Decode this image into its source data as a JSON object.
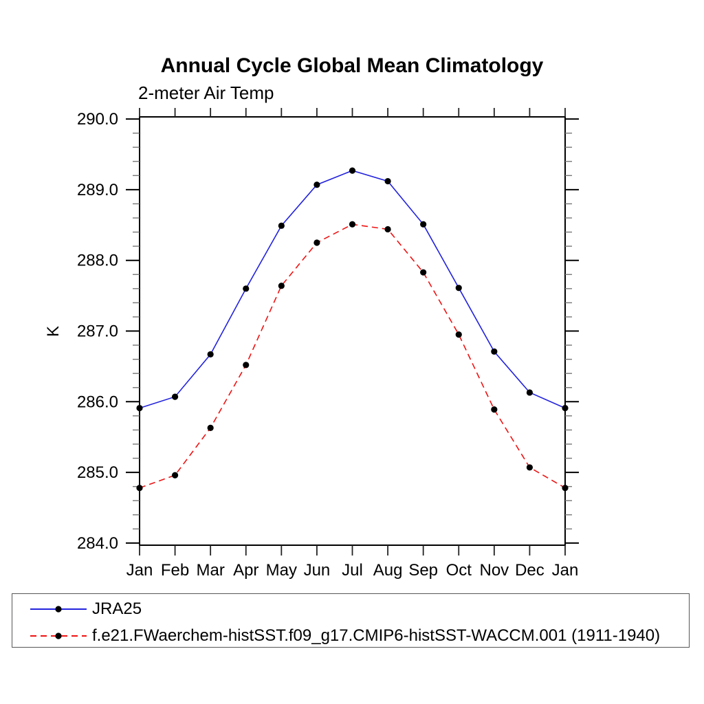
{
  "chart": {
    "title": "Annual Cycle Global Mean Climatology",
    "subtitle": "2-meter Air Temp",
    "ylabel": "K"
  },
  "chart_data": {
    "type": "line",
    "title": "Annual Cycle Global Mean Climatology",
    "subtitle": "2-meter Air Temp",
    "xlabel": "",
    "ylabel": "K",
    "categories": [
      "Jan",
      "Feb",
      "Mar",
      "Apr",
      "May",
      "Jun",
      "Jul",
      "Aug",
      "Sep",
      "Oct",
      "Nov",
      "Dec",
      "Jan"
    ],
    "ylim": [
      284.0,
      290.0
    ],
    "ytick_labels": [
      "284.0",
      "285.0",
      "286.0",
      "287.0",
      "288.0",
      "289.0",
      "290.0"
    ],
    "ytick_values": [
      284.0,
      285.0,
      286.0,
      287.0,
      288.0,
      289.0,
      290.0
    ],
    "ytick_minor_step": 0.2,
    "grid": false,
    "legend_position": "bottom box, full width",
    "axis_color": "#000000",
    "minor_tick_color": "#777777",
    "marker": "filled-circle",
    "marker_color": "#000000",
    "series": [
      {
        "name": "JRA25",
        "color": "#2222dd",
        "line_style": "solid",
        "values": [
          285.91,
          286.07,
          286.67,
          287.6,
          288.49,
          289.07,
          289.27,
          289.12,
          288.51,
          287.61,
          286.71,
          286.13,
          285.91
        ]
      },
      {
        "name": "f.e21.FWaerchem-histSST.f09_g17.CMIP6-histSST-WACCM.001 (1911-1940)",
        "color": "#ee1111",
        "line_style": "dashed",
        "values": [
          284.78,
          284.96,
          285.63,
          286.52,
          287.64,
          288.25,
          288.51,
          288.44,
          287.83,
          286.95,
          285.89,
          285.07,
          284.78
        ]
      }
    ]
  }
}
